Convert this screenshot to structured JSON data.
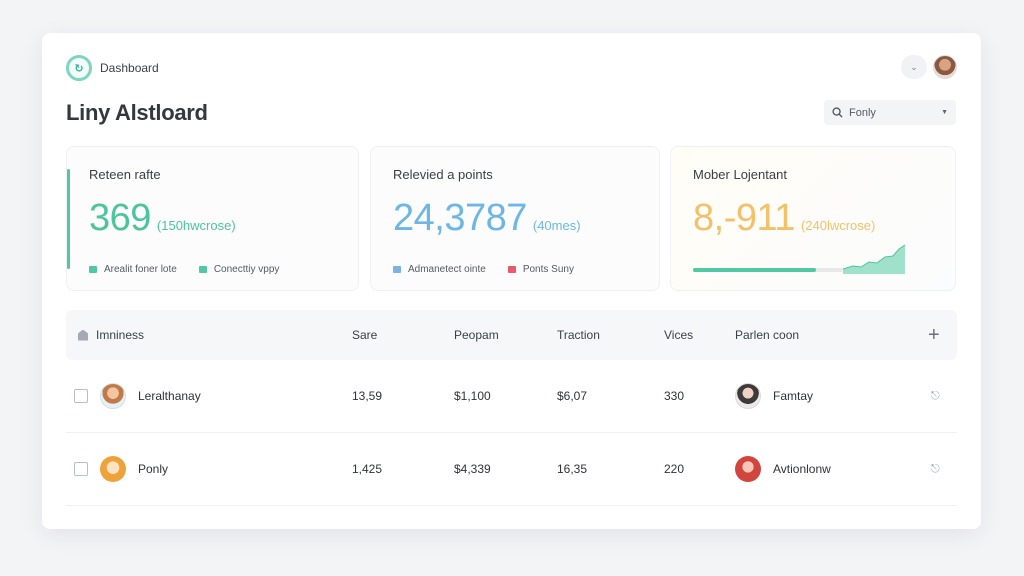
{
  "header": {
    "brand_label": "Dashboard",
    "page_title": "Liny Alstloard",
    "filter": {
      "value": "Fonly"
    }
  },
  "stats": [
    {
      "label": "Reteen rafte",
      "value": "369",
      "sub": "(150hwcrose)",
      "legend": [
        "Arealit foner lote",
        "Conecttiy vppy"
      ],
      "color": "#4cc49c"
    },
    {
      "label": "Relevied a points",
      "value": "24,3787",
      "sub": "(40mes)",
      "legend": [
        "Admanetect ointe",
        "Ponts Suny"
      ],
      "color": "#6cb7e5"
    },
    {
      "label": "Mober Lojentant",
      "value": "8,-911",
      "sub": "(240lwcrose)",
      "progress": 0.82,
      "color": "#f2c16a"
    }
  ],
  "table": {
    "headers": [
      "Imniness",
      "Sare",
      "Peopam",
      "Traction",
      "Vices",
      "Parlen coon"
    ],
    "rows": [
      {
        "name": "Leralthanay",
        "sare": "13,59",
        "peopam": "$1,100",
        "traction": "$6,07",
        "vices": "330",
        "partner": "Famtay"
      },
      {
        "name": "Ponly",
        "sare": "1,425",
        "peopam": "$4,339",
        "traction": "16,35",
        "vices": "220",
        "partner": "Avtionlonw"
      }
    ]
  },
  "icons": {
    "logo": "logo-icon",
    "chevron": "chevron-down-icon",
    "search": "search-icon",
    "add": "plus-icon",
    "row_action": "mic-icon"
  }
}
